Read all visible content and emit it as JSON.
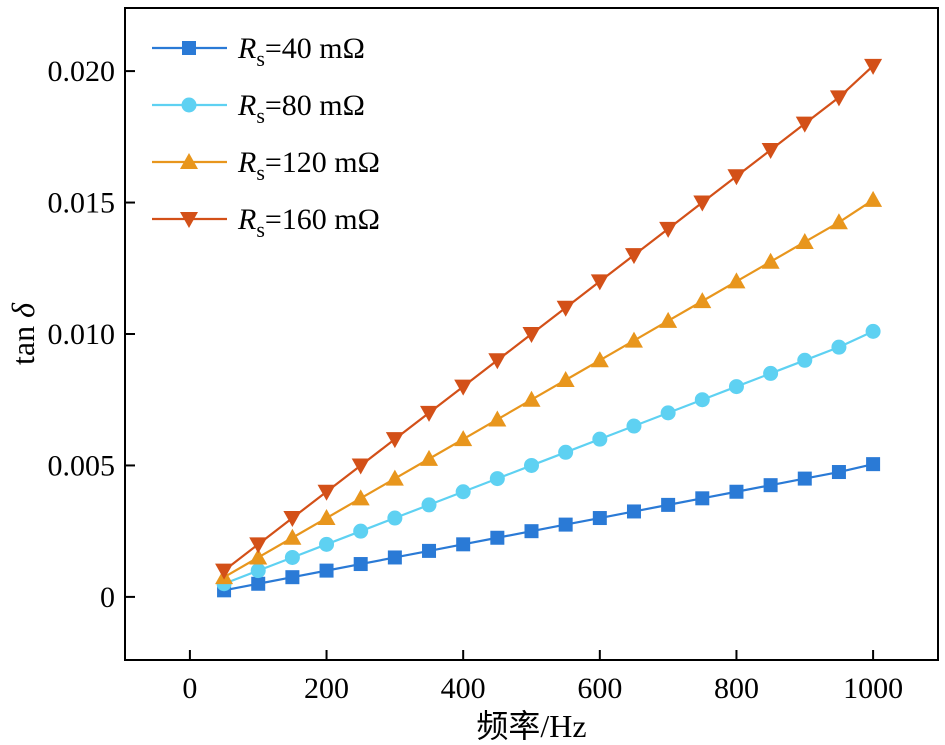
{
  "chart_data": {
    "type": "line",
    "xlabel": "频率/Hz",
    "ylabel": "tan δ",
    "ylabel_parts": {
      "prefix": "tan ",
      "symbol": "δ"
    },
    "xlim": [
      -95,
      1095
    ],
    "ylim": [
      -0.0024,
      0.0224
    ],
    "x_ticks": [
      0,
      200,
      400,
      600,
      800,
      1000
    ],
    "x_tick_labels": [
      "0",
      "200",
      "400",
      "600",
      "800",
      "1000"
    ],
    "y_ticks": [
      0,
      0.005,
      0.01,
      0.015,
      0.02
    ],
    "y_tick_labels": [
      "0",
      "0.005",
      "0.010",
      "0.015",
      "0.020"
    ],
    "grid": false,
    "legend_position": "top-left",
    "x": [
      50,
      100,
      150,
      200,
      250,
      300,
      350,
      400,
      450,
      500,
      550,
      600,
      650,
      700,
      750,
      800,
      850,
      900,
      950,
      1000
    ],
    "series": [
      {
        "name": "Rs=40 mΩ",
        "label_main": "R",
        "label_sub": "s",
        "label_rest": "=40 mΩ",
        "marker": "square",
        "color": "#2a7ad6",
        "values": [
          0.00025,
          0.0005,
          0.00075,
          0.001,
          0.00125,
          0.0015,
          0.00175,
          0.002,
          0.00225,
          0.0025,
          0.00275,
          0.003,
          0.00325,
          0.0035,
          0.00375,
          0.004,
          0.00425,
          0.0045,
          0.00475,
          0.00505
        ]
      },
      {
        "name": "Rs=80 mΩ",
        "label_main": "R",
        "label_sub": "s",
        "label_rest": "=80 mΩ",
        "marker": "circle",
        "color": "#5ed1f2",
        "values": [
          0.0005,
          0.001,
          0.0015,
          0.002,
          0.0025,
          0.003,
          0.0035,
          0.004,
          0.0045,
          0.005,
          0.0055,
          0.006,
          0.0065,
          0.007,
          0.0075,
          0.008,
          0.0085,
          0.009,
          0.0095,
          0.0101
        ]
      },
      {
        "name": "Rs=120 mΩ",
        "label_main": "R",
        "label_sub": "s",
        "label_rest": "=120 mΩ",
        "marker": "triangle-up",
        "color": "#e8961d",
        "values": [
          0.00075,
          0.0015,
          0.00225,
          0.003,
          0.00375,
          0.0045,
          0.00525,
          0.006,
          0.00675,
          0.0075,
          0.00825,
          0.009,
          0.00975,
          0.0105,
          0.01125,
          0.012,
          0.01275,
          0.0135,
          0.01425,
          0.0151
        ]
      },
      {
        "name": "Rs=160 mΩ",
        "label_main": "R",
        "label_sub": "s",
        "label_rest": "=160 mΩ",
        "marker": "triangle-down",
        "color": "#d35018",
        "values": [
          0.001,
          0.002,
          0.003,
          0.004,
          0.005,
          0.006,
          0.007,
          0.008,
          0.009,
          0.01,
          0.011,
          0.012,
          0.013,
          0.014,
          0.015,
          0.016,
          0.017,
          0.018,
          0.019,
          0.0202
        ]
      }
    ]
  }
}
